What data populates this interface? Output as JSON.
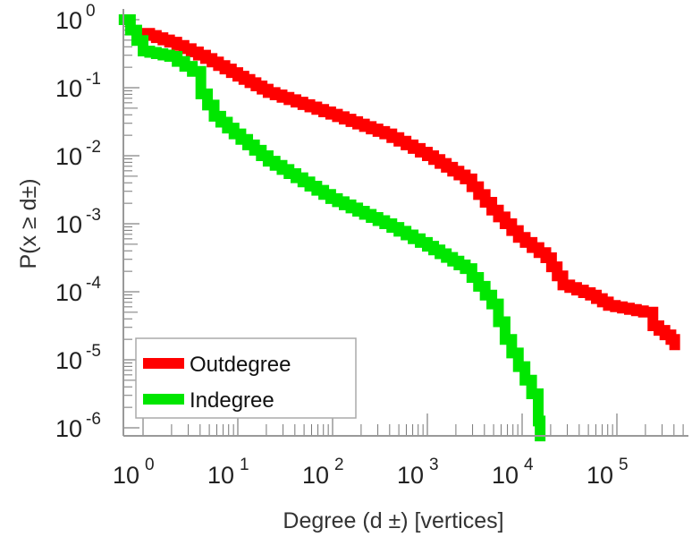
{
  "chart_data": {
    "type": "line",
    "title": "",
    "xlabel": "Degree (d ±) [vertices]",
    "ylabel": "P(x ≥ d±)",
    "xscale": "log",
    "yscale": "log",
    "xlim_log10": [
      -0.2,
      5.75
    ],
    "ylim_log10": [
      -6.12,
      0.15
    ],
    "x_ticks": [
      {
        "base": "10",
        "exp": "0"
      },
      {
        "base": "10",
        "exp": "1"
      },
      {
        "base": "10",
        "exp": "2"
      },
      {
        "base": "10",
        "exp": "3"
      },
      {
        "base": "10",
        "exp": "4"
      },
      {
        "base": "10",
        "exp": "5"
      }
    ],
    "y_ticks": [
      {
        "base": "10",
        "exp": "0"
      },
      {
        "base": "10",
        "exp": "-1"
      },
      {
        "base": "10",
        "exp": "-2"
      },
      {
        "base": "10",
        "exp": "-3"
      },
      {
        "base": "10",
        "exp": "-4"
      },
      {
        "base": "10",
        "exp": "-5"
      },
      {
        "base": "10",
        "exp": "-6"
      }
    ],
    "grid": false,
    "legend_position": "bottom-left",
    "series": [
      {
        "name": "Outdegree",
        "color": "#ff0000",
        "log10_x": [
          0,
          0.28,
          0.66,
          1.0,
          1.32,
          1.98,
          2.55,
          3.0,
          3.4,
          3.68,
          3.96,
          4.25,
          4.43,
          4.72,
          4.91,
          5.28,
          5.38,
          5.57,
          5.61
        ],
        "log10_y": [
          -0.2,
          -0.33,
          -0.57,
          -0.83,
          -1.07,
          -1.39,
          -1.68,
          -2.0,
          -2.34,
          -2.8,
          -3.2,
          -3.5,
          -3.9,
          -4.05,
          -4.2,
          -4.3,
          -4.5,
          -4.7,
          -4.78
        ]
      },
      {
        "name": "Indegree",
        "color": "#00e600",
        "log10_x": [
          -0.2,
          0.0,
          0.28,
          0.52,
          0.61,
          0.75,
          0.96,
          1.32,
          1.98,
          2.55,
          3.0,
          3.4,
          3.68,
          3.82,
          3.96,
          4.1,
          4.17,
          4.19
        ],
        "log10_y": [
          0,
          -0.46,
          -0.54,
          -0.76,
          -1.09,
          -1.42,
          -1.68,
          -2.08,
          -2.63,
          -3.0,
          -3.33,
          -3.66,
          -4.18,
          -4.7,
          -5.1,
          -5.5,
          -5.9,
          -6.12
        ]
      }
    ]
  }
}
